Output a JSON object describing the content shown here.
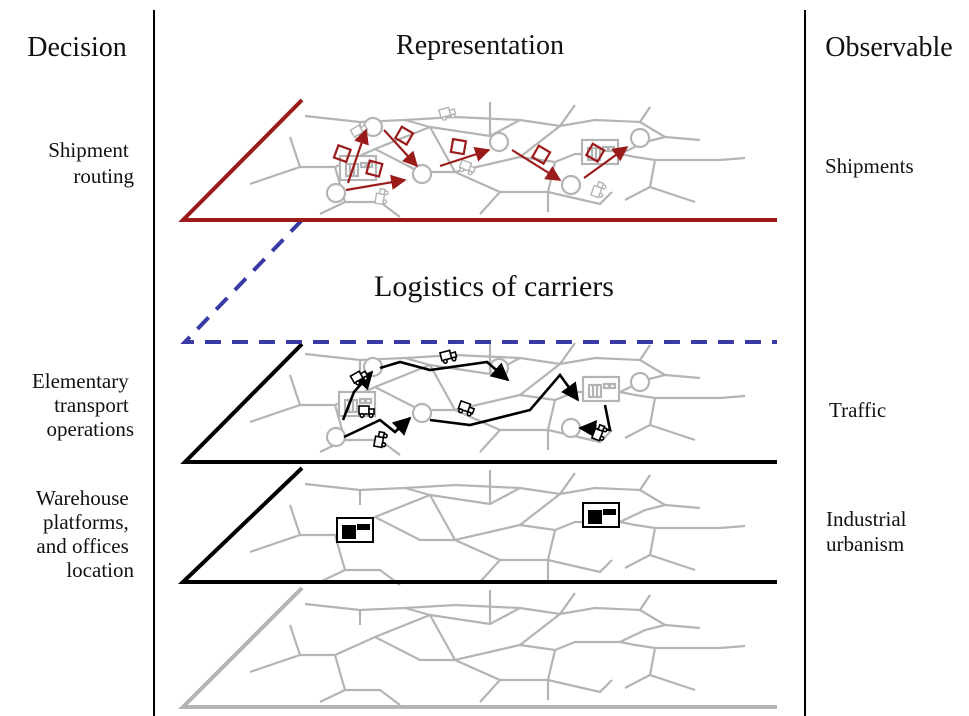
{
  "headers": {
    "decision": "Decision",
    "representation": "Representation",
    "observable": "Observable"
  },
  "decisions": {
    "shipment_routing": [
      "Shipment",
      "routing"
    ],
    "elementary_transport": [
      "Elementary",
      "transport",
      "operations"
    ],
    "warehouse": [
      "Warehouse",
      "platforms,",
      "and offices",
      "location"
    ]
  },
  "observables": {
    "shipments": "Shipments",
    "traffic": "Traffic",
    "industrial_urbanism": [
      "Industrial",
      "urbanism"
    ]
  },
  "middle_label": "Logistics of carriers",
  "colors": {
    "shipment_layer": "#9b1b1b",
    "carrier_layer": "#3a3aa6",
    "transport_layer": "#000000",
    "network": "#b4b4b4"
  },
  "icons": [
    "truck-icon",
    "warehouse-icon",
    "parcel-icon",
    "node-circle-icon"
  ]
}
